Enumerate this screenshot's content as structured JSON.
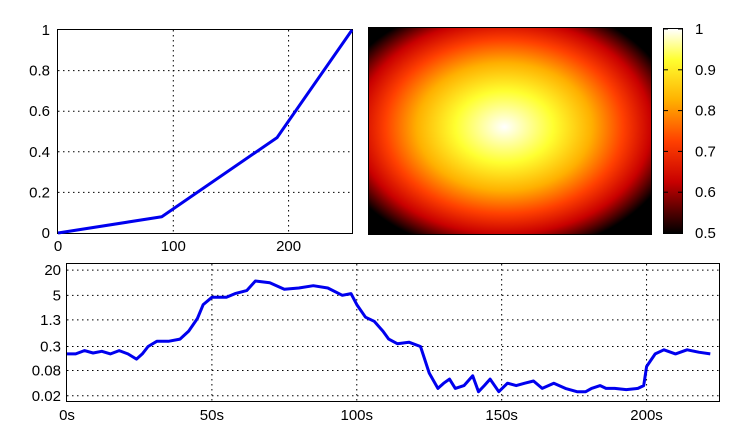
{
  "chart_data": [
    {
      "type": "line",
      "x": [
        0,
        90,
        190,
        255
      ],
      "y": [
        0,
        0.08,
        0.47,
        1
      ],
      "xlim": [
        0,
        255
      ],
      "ylim": [
        0,
        1
      ],
      "xticks": [
        "0",
        "100",
        "200"
      ],
      "xtick_values": [
        0,
        100,
        200
      ],
      "yticks": [
        "0",
        "0.2",
        "0.4",
        "0.6",
        "0.8",
        "1"
      ],
      "ytick_values": [
        0,
        0.2,
        0.4,
        0.6,
        0.8,
        1
      ],
      "grid": true,
      "color": "#0000ee"
    },
    {
      "type": "heatmap",
      "colormap": "hot",
      "clim": [
        0.5,
        1
      ],
      "peak_value": 1,
      "edge_value": 0.5,
      "colorbar_ticks": [
        "1",
        "0.9",
        "0.8",
        "0.7",
        "0.6",
        "0.5"
      ],
      "colorbar_tick_values": [
        1,
        0.9,
        0.8,
        0.7,
        0.6,
        0.5
      ],
      "colors": [
        "#000000",
        "#c80000",
        "#ff4000",
        "#ffb000",
        "#ffff30",
        "#ffffff"
      ]
    },
    {
      "type": "line",
      "yscale": "log",
      "x": [
        0,
        3,
        6,
        9,
        12,
        15,
        18,
        21,
        24,
        26,
        28,
        31,
        35,
        39,
        42,
        45,
        47,
        50,
        55,
        58,
        62,
        65,
        70,
        75,
        80,
        85,
        90,
        95,
        98,
        100,
        103,
        106,
        109,
        111,
        114,
        118,
        122,
        125,
        128,
        130,
        132,
        134,
        137,
        140,
        142,
        144,
        146,
        149,
        152,
        155,
        158,
        161,
        164,
        168,
        172,
        176,
        179,
        181,
        184,
        186,
        189,
        193,
        197,
        199,
        200,
        203,
        206,
        210,
        214,
        218,
        222
      ],
      "y": [
        0.2,
        0.2,
        0.24,
        0.21,
        0.23,
        0.2,
        0.24,
        0.2,
        0.15,
        0.2,
        0.3,
        0.4,
        0.4,
        0.45,
        0.7,
        1.4,
        3,
        4.5,
        4.5,
        5.5,
        6.5,
        11,
        10,
        7,
        7.5,
        8.5,
        7.5,
        5,
        5.5,
        3,
        1.5,
        1.2,
        0.7,
        0.45,
        0.35,
        0.38,
        0.3,
        0.07,
        0.03,
        0.04,
        0.05,
        0.03,
        0.035,
        0.06,
        0.025,
        0.035,
        0.05,
        0.025,
        0.04,
        0.035,
        0.04,
        0.045,
        0.03,
        0.04,
        0.03,
        0.025,
        0.025,
        0.03,
        0.035,
        0.03,
        0.03,
        0.028,
        0.03,
        0.035,
        0.1,
        0.2,
        0.25,
        0.2,
        0.25,
        0.22,
        0.2
      ],
      "xlim": [
        0,
        225
      ],
      "ylim": [
        0.015,
        28
      ],
      "xticks": [
        "0s",
        "50s",
        "100s",
        "150s",
        "200s"
      ],
      "xtick_values": [
        0,
        50,
        100,
        150,
        200
      ],
      "yticks": [
        "20",
        "5",
        "1.3",
        "0.3",
        "0.08",
        "0.02"
      ],
      "ytick_values": [
        20,
        5,
        1.3,
        0.3,
        0.08,
        0.02
      ],
      "grid": true,
      "color": "#0000ee"
    }
  ]
}
